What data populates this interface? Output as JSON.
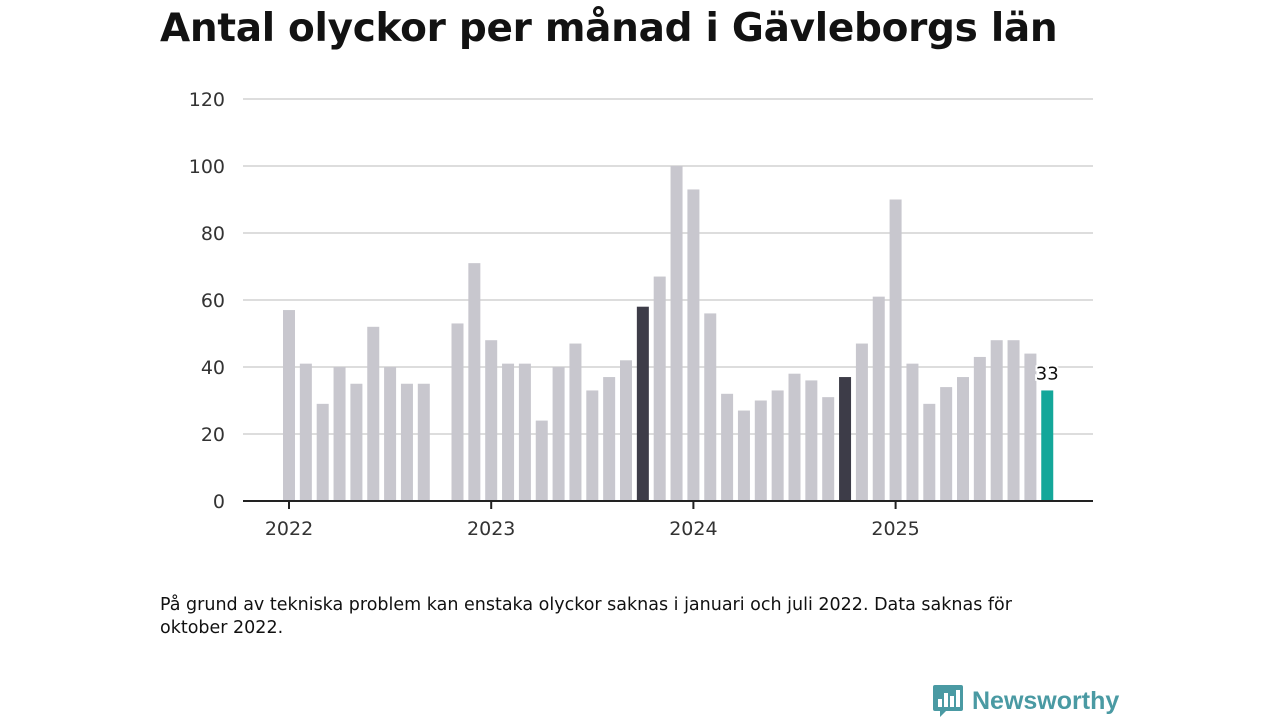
{
  "chart_data": {
    "type": "bar",
    "title": "Antal olyckor per månad i Gävleborgs län",
    "xlabel": "",
    "ylabel": "",
    "ylim": [
      0,
      120
    ],
    "yticks": [
      0,
      20,
      40,
      60,
      80,
      100,
      120
    ],
    "xtick_labels": [
      "2022",
      "2023",
      "2024",
      "2025"
    ],
    "grid": true,
    "legend": "none",
    "categories": [
      "2022-01",
      "2022-02",
      "2022-03",
      "2022-04",
      "2022-05",
      "2022-06",
      "2022-07",
      "2022-08",
      "2022-09",
      "2022-10",
      "2022-11",
      "2022-12",
      "2023-01",
      "2023-02",
      "2023-03",
      "2023-04",
      "2023-05",
      "2023-06",
      "2023-07",
      "2023-08",
      "2023-09",
      "2023-10",
      "2023-11",
      "2023-12",
      "2024-01",
      "2024-02",
      "2024-03",
      "2024-04",
      "2024-05",
      "2024-06",
      "2024-07",
      "2024-08",
      "2024-09",
      "2024-10",
      "2024-11",
      "2024-12",
      "2025-01",
      "2025-02",
      "2025-03",
      "2025-04",
      "2025-05",
      "2025-06",
      "2025-07",
      "2025-08",
      "2025-09",
      "2025-10"
    ],
    "values": [
      57,
      41,
      29,
      40,
      35,
      52,
      40,
      35,
      35,
      null,
      53,
      71,
      48,
      41,
      41,
      24,
      40,
      47,
      33,
      37,
      42,
      58,
      67,
      100,
      93,
      56,
      32,
      27,
      30,
      33,
      38,
      36,
      31,
      37,
      47,
      61,
      90,
      41,
      29,
      34,
      37,
      43,
      48,
      48,
      44,
      33
    ],
    "highlighted": [
      "2023-10",
      "2024-10"
    ],
    "latest": "2025-10",
    "data_labels": [
      {
        "category": "2025-10",
        "text": "33"
      }
    ],
    "colors": {
      "bar": "#c8c7ce",
      "highlight": "#3d3c48",
      "latest": "#13a79a",
      "grid": "#dddddd",
      "axis": "#222222"
    }
  },
  "note": "På grund av tekniska problem kan enstaka olyckor saknas i januari och juli 2022. Data saknas för oktober 2022.",
  "brand": {
    "name": "Newsworthy",
    "color": "#4a9aa3",
    "icon": "bar-chart-speech-icon"
  }
}
